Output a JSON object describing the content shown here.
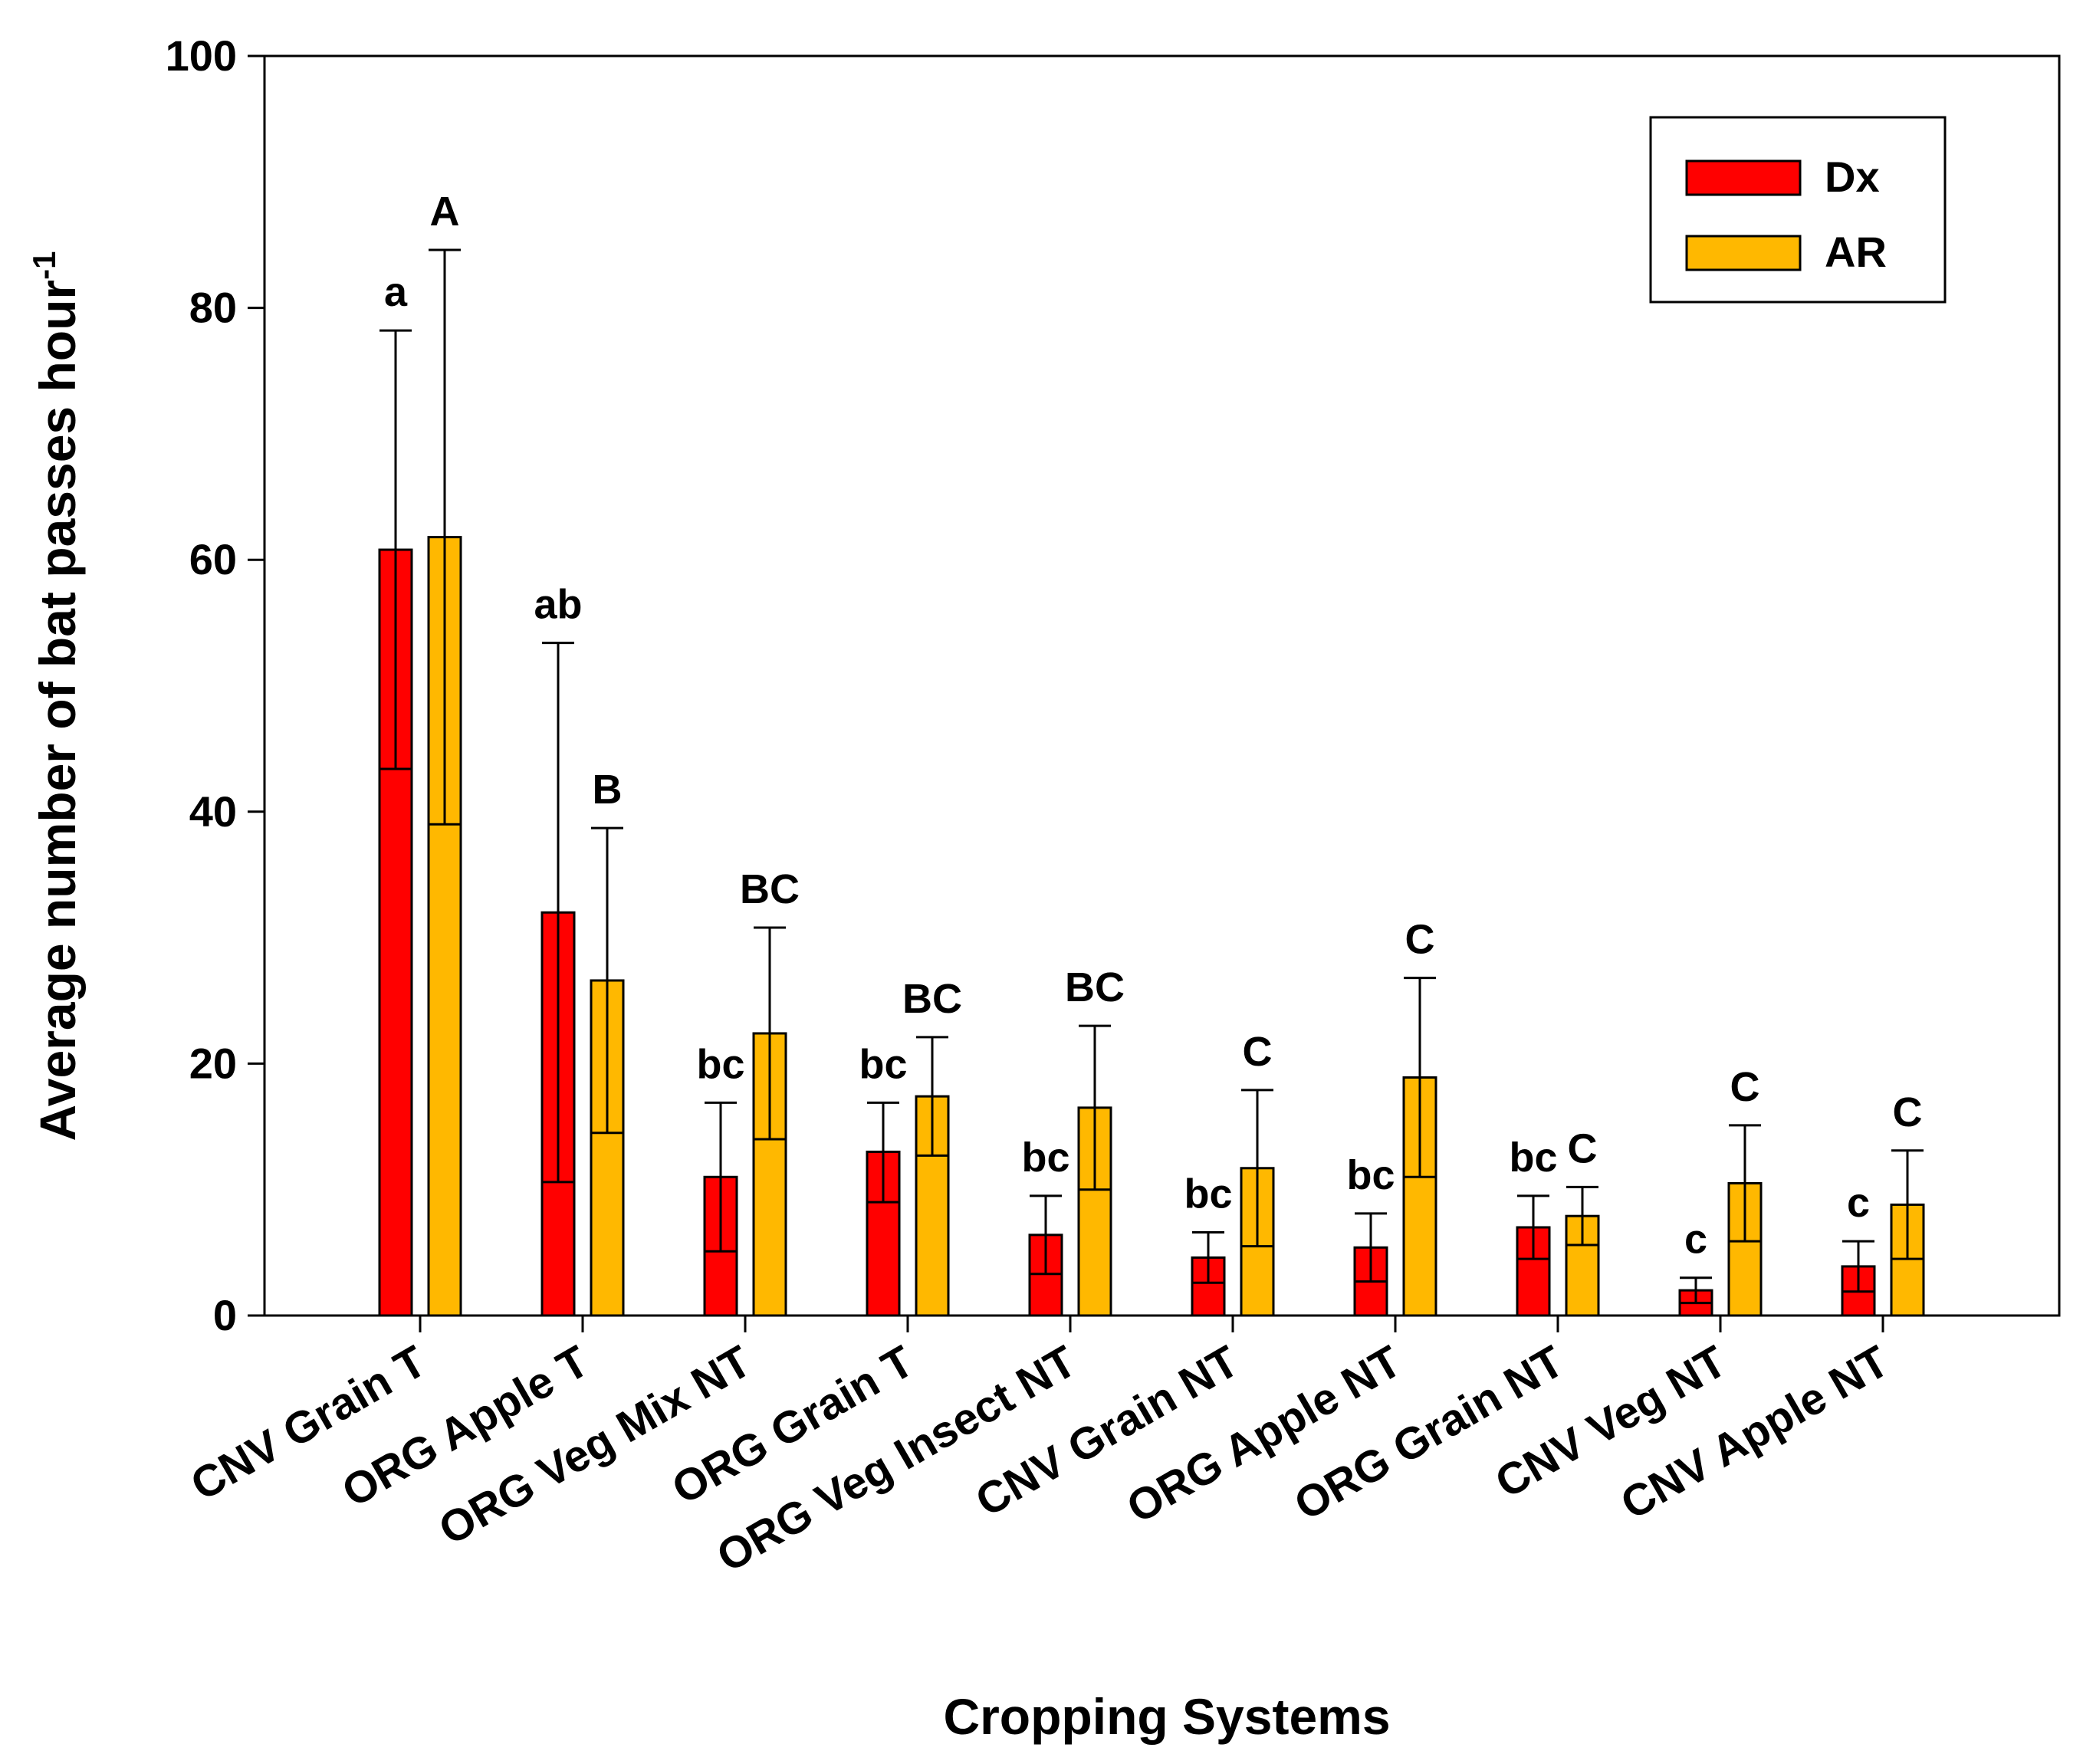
{
  "chart_data": {
    "type": "bar",
    "xlabel": "Cropping Systems",
    "ylabel": "Average number of bat passes hour",
    "ylabel_superscript": "-1",
    "ylim": [
      0,
      100
    ],
    "yticks": [
      0,
      20,
      40,
      60,
      80,
      100
    ],
    "legend_position": "top-right",
    "grid": false,
    "categories": [
      "CNV Grain T",
      "ORG Apple T",
      "ORG Veg Mix NT",
      "ORG Grain T",
      "ORG Veg Insect NT",
      "CNV Grain NT",
      "ORG Apple NT",
      "ORG Grain NT",
      "CNV Veg NT",
      "CNV Apple NT"
    ],
    "series": [
      {
        "name": "Dx",
        "color": "#ff0000",
        "values": [
          60.8,
          32.0,
          11.0,
          13.0,
          6.4,
          4.6,
          5.4,
          7.0,
          2.0,
          3.9
        ],
        "error_upper": [
          78.2,
          53.4,
          16.9,
          16.9,
          9.5,
          6.6,
          8.1,
          9.5,
          3.0,
          5.9
        ],
        "error_lower": [
          43.4,
          10.6,
          5.1,
          9.0,
          3.3,
          2.6,
          2.7,
          4.5,
          1.0,
          1.9
        ],
        "letters": [
          "a",
          "ab",
          "bc",
          "bc",
          "bc",
          "bc",
          "bc",
          "bc",
          "c",
          "c"
        ]
      },
      {
        "name": "AR",
        "color": "#ffb800",
        "values": [
          61.8,
          26.6,
          22.4,
          17.4,
          16.5,
          11.7,
          18.9,
          7.9,
          10.5,
          8.8
        ],
        "error_upper": [
          84.6,
          38.7,
          30.8,
          22.1,
          23.0,
          17.9,
          26.8,
          10.2,
          15.1,
          13.1
        ],
        "error_lower": [
          39.0,
          14.5,
          14.0,
          12.7,
          10.0,
          5.5,
          11.0,
          5.6,
          5.9,
          4.5
        ],
        "letters": [
          "A",
          "B",
          "BC",
          "BC",
          "BC",
          "C",
          "C",
          "C",
          "C",
          "C"
        ]
      }
    ]
  }
}
